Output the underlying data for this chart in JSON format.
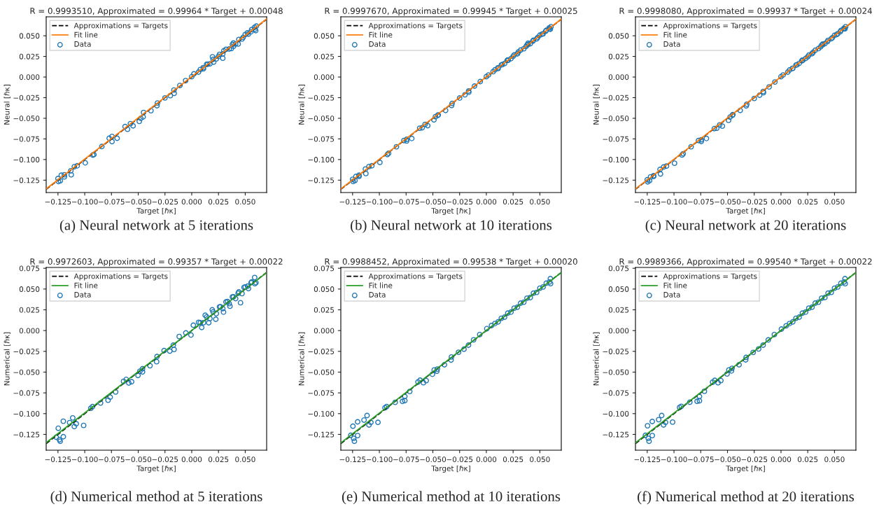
{
  "chart_data": [
    {
      "type": "scatter",
      "title": "R = 0.9993510, Approximated = 0.99964 * Target + 0.00048",
      "xlabel": "Target [ℏκ]",
      "ylabel": "Neural [ℏκ]",
      "annotations": [
        "(a) Neural network at 5 iterations"
      ],
      "legend": "top left",
      "grid": false,
      "xlim": [
        -0.136,
        0.07
      ],
      "ylim": [
        -0.14,
        0.073
      ],
      "xticks": [
        {
          "value": -0.125,
          "label": "−0.125"
        },
        {
          "value": -0.1,
          "label": "−0.100"
        },
        {
          "value": -0.075,
          "label": "−0.075"
        },
        {
          "value": -0.05,
          "label": "−0.050"
        },
        {
          "value": -0.025,
          "label": "−0.025"
        },
        {
          "value": 0,
          "label": "0.000"
        },
        {
          "value": 0.025,
          "label": "0.025"
        },
        {
          "value": 0.05,
          "label": "0.050"
        }
      ],
      "yticks": [
        {
          "value": -0.125,
          "label": "−0.125"
        },
        {
          "value": -0.1,
          "label": "−0.100"
        },
        {
          "value": -0.075,
          "label": "−0.075"
        },
        {
          "value": -0.05,
          "label": "−0.050"
        },
        {
          "value": -0.025,
          "label": "−0.025"
        },
        {
          "value": 0,
          "label": "0.000"
        },
        {
          "value": 0.025,
          "label": "0.025"
        },
        {
          "value": 0.05,
          "label": "0.050"
        }
      ],
      "series": [
        {
          "name": "Approximations = Targets",
          "type": "line",
          "line_style": "dashed",
          "color": "#000000",
          "x": [
            -0.136,
            0.07
          ],
          "values": [
            -0.136,
            0.07
          ]
        },
        {
          "name": "Fit line",
          "type": "line",
          "line_style": "solid",
          "color": "#ff7f0e",
          "x": [
            -0.136,
            0.07
          ],
          "values": [
            -0.13547,
            0.07045
          ]
        },
        {
          "name": "Data",
          "type": "scatter",
          "marker": "circle",
          "color": "#1f77b4",
          "x": [
            -0.125,
            -0.1245,
            -0.1228,
            -0.1219,
            -0.119,
            -0.119,
            -0.1126,
            -0.113,
            -0.1097,
            -0.107,
            -0.0995,
            -0.0925,
            -0.0914,
            -0.084,
            -0.0771,
            -0.0745,
            -0.0745,
            -0.0697,
            -0.0623,
            -0.06,
            -0.0573,
            -0.0548,
            -0.049,
            -0.0476,
            -0.0454,
            -0.045,
            -0.0381,
            -0.0325,
            -0.032,
            -0.025,
            -0.02,
            -0.0166,
            -0.0164,
            -0.0111,
            -0.0057,
            0,
            0.002,
            0.0063,
            0.0107,
            0.015,
            0.0194,
            0.0205,
            0.025,
            0.029,
            0.03,
            0.037,
            0.039,
            0.039,
            0.0434,
            0.048,
            0.052,
            0.0554,
            0.0587,
            0.0598,
            0.0604,
            0.008,
            0.011,
            0.014,
            0.017,
            0.02,
            0.023,
            0.026,
            0.029,
            0.032,
            0.035,
            0.038,
            0.041,
            0.044,
            0.047,
            0.05,
            0.053,
            0.056,
            0.059
          ],
          "values": [
            -0.123,
            -0.1266,
            -0.1258,
            -0.119,
            -0.1185,
            -0.121,
            -0.1185,
            -0.1136,
            -0.1087,
            -0.1076,
            -0.104,
            -0.0946,
            -0.094,
            -0.0842,
            -0.0742,
            -0.072,
            -0.0783,
            -0.0742,
            -0.06,
            -0.0633,
            -0.0565,
            -0.0592,
            -0.0538,
            -0.05,
            -0.0484,
            -0.0429,
            -0.0408,
            -0.0348,
            -0.0315,
            -0.0253,
            -0.0226,
            -0.0158,
            -0.0198,
            -0.0103,
            -0.0043,
            0.0005,
            0.0038,
            0.006,
            0.0114,
            0.0155,
            0.0245,
            0.018,
            0.025,
            0.0228,
            0.0318,
            0.0345,
            0.0372,
            0.0413,
            0.04,
            0.048,
            0.0535,
            0.0549,
            0.0603,
            0.0563,
            0.0617,
            0.009,
            0.01,
            0.0155,
            0.016,
            0.0215,
            0.022,
            0.0275,
            0.028,
            0.0335,
            0.034,
            0.0395,
            0.04,
            0.0455,
            0.046,
            0.0515,
            0.052,
            0.0575,
            0.058
          ]
        }
      ]
    },
    {
      "type": "scatter",
      "title": "R = 0.9997670, Approximated = 0.99945 * Target + 0.00025",
      "xlabel": "Target [ℏκ]",
      "ylabel": "Neural [ℏκ]",
      "annotations": [
        "(b) Neural network at 10 iterations"
      ],
      "legend": "top left",
      "grid": false,
      "xlim": [
        -0.136,
        0.07
      ],
      "ylim": [
        -0.14,
        0.073
      ],
      "xticks": [
        {
          "value": -0.125,
          "label": "−0.125"
        },
        {
          "value": -0.1,
          "label": "−0.100"
        },
        {
          "value": -0.075,
          "label": "−0.075"
        },
        {
          "value": -0.05,
          "label": "−0.050"
        },
        {
          "value": -0.025,
          "label": "−0.025"
        },
        {
          "value": 0,
          "label": "0.000"
        },
        {
          "value": 0.025,
          "label": "0.025"
        },
        {
          "value": 0.05,
          "label": "0.050"
        }
      ],
      "yticks": [
        {
          "value": -0.125,
          "label": "−0.125"
        },
        {
          "value": -0.1,
          "label": "−0.100"
        },
        {
          "value": -0.075,
          "label": "−0.075"
        },
        {
          "value": -0.05,
          "label": "−0.050"
        },
        {
          "value": -0.025,
          "label": "−0.025"
        },
        {
          "value": 0,
          "label": "0.000"
        },
        {
          "value": 0.025,
          "label": "0.025"
        },
        {
          "value": 0.05,
          "label": "0.050"
        }
      ],
      "series": [
        {
          "name": "Approximations = Targets",
          "type": "line",
          "line_style": "dashed",
          "color": "#000000",
          "x": [
            -0.136,
            0.07
          ],
          "values": [
            -0.136,
            0.07
          ]
        },
        {
          "name": "Fit line",
          "type": "line",
          "line_style": "solid",
          "color": "#ff7f0e",
          "x": [
            -0.136,
            0.07
          ],
          "values": [
            -0.13568,
            0.07021
          ]
        },
        {
          "name": "Data",
          "type": "scatter",
          "marker": "circle",
          "color": "#1f77b4",
          "x": [
            -0.125,
            -0.1245,
            -0.1228,
            -0.1219,
            -0.119,
            -0.119,
            -0.1126,
            -0.113,
            -0.1097,
            -0.107,
            -0.0995,
            -0.0925,
            -0.0914,
            -0.084,
            -0.0771,
            -0.0745,
            -0.0745,
            -0.0697,
            -0.0623,
            -0.06,
            -0.0573,
            -0.0548,
            -0.049,
            -0.0476,
            -0.0454,
            -0.045,
            -0.0381,
            -0.0325,
            -0.032,
            -0.025,
            -0.02,
            -0.0166,
            -0.0164,
            -0.0111,
            -0.0057,
            0,
            0.002,
            0.0063,
            0.0107,
            0.015,
            0.0194,
            0.0205,
            0.025,
            0.029,
            0.03,
            0.037,
            0.039,
            0.039,
            0.0434,
            0.048,
            0.052,
            0.0554,
            0.0587,
            0.0598,
            0.0604,
            0.008,
            0.011,
            0.014,
            0.017,
            0.02,
            0.023,
            0.026,
            0.029,
            0.032,
            0.035,
            0.038,
            0.041,
            0.044,
            0.047,
            0.05,
            0.053,
            0.056,
            0.059
          ],
          "values": [
            -0.124,
            -0.1265,
            -0.1255,
            -0.1205,
            -0.119,
            -0.1205,
            -0.117,
            -0.1115,
            -0.1085,
            -0.1075,
            -0.1035,
            -0.094,
            -0.0925,
            -0.0845,
            -0.077,
            -0.0755,
            -0.0775,
            -0.0745,
            -0.062,
            -0.0615,
            -0.0575,
            -0.059,
            -0.052,
            -0.048,
            -0.0465,
            -0.046,
            -0.0405,
            -0.0345,
            -0.032,
            -0.0255,
            -0.0215,
            -0.017,
            -0.0185,
            -0.011,
            -0.0055,
            0.0005,
            0.0025,
            0.0065,
            0.011,
            0.0152,
            0.02,
            0.0205,
            0.025,
            0.0285,
            0.0305,
            0.037,
            0.0395,
            0.041,
            0.0435,
            0.048,
            0.052,
            0.0555,
            0.0595,
            0.058,
            0.061,
            0.0087,
            0.0103,
            0.0147,
            0.0163,
            0.0207,
            0.0223,
            0.0267,
            0.0283,
            0.0327,
            0.0343,
            0.0387,
            0.0403,
            0.0447,
            0.0463,
            0.0507,
            0.0523,
            0.0567,
            0.0583
          ]
        }
      ]
    },
    {
      "type": "scatter",
      "title": "R = 0.9998080, Approximated = 0.99937 * Target + 0.00024",
      "xlabel": "Target [ℏκ]",
      "ylabel": "Neural [ℏκ]",
      "annotations": [
        "(c) Neural network at 20 iterations"
      ],
      "legend": "top left",
      "grid": false,
      "xlim": [
        -0.136,
        0.07
      ],
      "ylim": [
        -0.14,
        0.073
      ],
      "xticks": [
        {
          "value": -0.125,
          "label": "−0.125"
        },
        {
          "value": -0.1,
          "label": "−0.100"
        },
        {
          "value": -0.075,
          "label": "−0.075"
        },
        {
          "value": -0.05,
          "label": "−0.050"
        },
        {
          "value": -0.025,
          "label": "−0.025"
        },
        {
          "value": 0,
          "label": "0.000"
        },
        {
          "value": 0.025,
          "label": "0.025"
        },
        {
          "value": 0.05,
          "label": "0.050"
        }
      ],
      "yticks": [
        {
          "value": -0.125,
          "label": "−0.125"
        },
        {
          "value": -0.1,
          "label": "−0.100"
        },
        {
          "value": -0.075,
          "label": "−0.075"
        },
        {
          "value": -0.05,
          "label": "−0.050"
        },
        {
          "value": -0.025,
          "label": "−0.025"
        },
        {
          "value": 0,
          "label": "0.000"
        },
        {
          "value": 0.025,
          "label": "0.025"
        },
        {
          "value": 0.05,
          "label": "0.050"
        }
      ],
      "series": [
        {
          "name": "Approximations = Targets",
          "type": "line",
          "line_style": "dashed",
          "color": "#000000",
          "x": [
            -0.136,
            0.07
          ],
          "values": [
            -0.136,
            0.07
          ]
        },
        {
          "name": "Fit line",
          "type": "line",
          "line_style": "solid",
          "color": "#ff7f0e",
          "x": [
            -0.136,
            0.07
          ],
          "values": [
            -0.13567,
            0.0702
          ]
        },
        {
          "name": "Data",
          "type": "scatter",
          "marker": "circle",
          "color": "#1f77b4",
          "x": [
            -0.125,
            -0.1245,
            -0.1228,
            -0.1219,
            -0.119,
            -0.119,
            -0.1126,
            -0.113,
            -0.1097,
            -0.107,
            -0.0995,
            -0.0925,
            -0.0914,
            -0.084,
            -0.0771,
            -0.0745,
            -0.0745,
            -0.0697,
            -0.0623,
            -0.06,
            -0.0573,
            -0.0548,
            -0.049,
            -0.0476,
            -0.0454,
            -0.045,
            -0.0381,
            -0.0325,
            -0.032,
            -0.025,
            -0.02,
            -0.0166,
            -0.0164,
            -0.0111,
            -0.0057,
            0,
            0.002,
            0.0063,
            0.0107,
            0.015,
            0.0194,
            0.0205,
            0.025,
            0.029,
            0.03,
            0.037,
            0.039,
            0.039,
            0.0434,
            0.048,
            0.052,
            0.0554,
            0.0587,
            0.0598,
            0.0604,
            0.008,
            0.011,
            0.014,
            0.017,
            0.02,
            0.023,
            0.026,
            0.029,
            0.032,
            0.035,
            0.038,
            0.041,
            0.044,
            0.047,
            0.05,
            0.053,
            0.056,
            0.059
          ],
          "values": [
            -0.1245,
            -0.127,
            -0.1255,
            -0.121,
            -0.1195,
            -0.1205,
            -0.1175,
            -0.112,
            -0.109,
            -0.108,
            -0.1045,
            -0.0945,
            -0.093,
            -0.0845,
            -0.077,
            -0.076,
            -0.078,
            -0.0745,
            -0.0625,
            -0.062,
            -0.058,
            -0.0595,
            -0.0525,
            -0.0485,
            -0.0465,
            -0.0455,
            -0.0405,
            -0.035,
            -0.033,
            -0.026,
            -0.022,
            -0.0175,
            -0.019,
            -0.012,
            -0.006,
            0.0005,
            0.0025,
            0.006,
            0.0105,
            0.015,
            0.0195,
            0.0205,
            0.0245,
            0.0285,
            0.03,
            0.0365,
            0.039,
            0.04,
            0.043,
            0.0475,
            0.0515,
            0.055,
            0.059,
            0.0585,
            0.061,
            0.0085,
            0.0105,
            0.0145,
            0.0165,
            0.0205,
            0.0225,
            0.0265,
            0.0285,
            0.0325,
            0.0345,
            0.0385,
            0.0405,
            0.0445,
            0.0465,
            0.0505,
            0.0525,
            0.0565,
            0.0585
          ]
        }
      ]
    },
    {
      "type": "scatter",
      "title": "R = 0.9972603, Approximated = 0.99357 * Target + 0.00022",
      "xlabel": "Target [ℏκ]",
      "ylabel": "Numerical [ℏκ]",
      "annotations": [
        "(d) Numerical method at 5 iterations"
      ],
      "legend": "top left",
      "grid": false,
      "xlim": [
        -0.136,
        0.07
      ],
      "ylim": [
        -0.144,
        0.076
      ],
      "xticks": [
        {
          "value": -0.125,
          "label": "−0.125"
        },
        {
          "value": -0.1,
          "label": "−0.100"
        },
        {
          "value": -0.075,
          "label": "−0.075"
        },
        {
          "value": -0.05,
          "label": "−0.050"
        },
        {
          "value": -0.025,
          "label": "−0.025"
        },
        {
          "value": 0,
          "label": "0.000"
        },
        {
          "value": 0.025,
          "label": "0.025"
        },
        {
          "value": 0.05,
          "label": "0.050"
        }
      ],
      "yticks": [
        {
          "value": -0.125,
          "label": "−0.125"
        },
        {
          "value": -0.1,
          "label": "−0.100"
        },
        {
          "value": -0.075,
          "label": "−0.075"
        },
        {
          "value": -0.05,
          "label": "−0.050"
        },
        {
          "value": -0.025,
          "label": "−0.025"
        },
        {
          "value": 0,
          "label": "0.000"
        },
        {
          "value": 0.025,
          "label": "0.025"
        },
        {
          "value": 0.05,
          "label": "0.050"
        },
        {
          "value": 0.075,
          "label": "0.075"
        }
      ],
      "series": [
        {
          "name": "Approximations = Targets",
          "type": "line",
          "line_style": "dashed",
          "color": "#000000",
          "x": [
            -0.136,
            0.07
          ],
          "values": [
            -0.136,
            0.07
          ]
        },
        {
          "name": "Fit line",
          "type": "line",
          "line_style": "solid",
          "color": "#2ca02c",
          "x": [
            -0.136,
            0.07
          ],
          "values": [
            -0.13491,
            0.06977
          ]
        },
        {
          "name": "Data",
          "type": "scatter",
          "marker": "circle",
          "color": "#1f77b4",
          "x": [
            -0.1266,
            -0.1247,
            -0.1236,
            -0.1229,
            -0.12,
            -0.12,
            -0.1141,
            -0.1112,
            -0.1097,
            -0.1079,
            -0.101,
            -0.0943,
            -0.0927,
            -0.0852,
            -0.0782,
            -0.0762,
            -0.0711,
            -0.0637,
            -0.0612,
            -0.0588,
            -0.0562,
            -0.0502,
            -0.0485,
            -0.046,
            -0.046,
            -0.039,
            -0.0328,
            -0.0324,
            -0.0258,
            -0.0205,
            -0.0172,
            -0.0165,
            -0.0117,
            -0.0055,
            -0.0007,
            0.0015,
            0.0064,
            0.0093,
            0.0126,
            0.0159,
            0.0192,
            0.0225,
            0.0269,
            0.0297,
            0.0335,
            0.0357,
            0.039,
            0.0434,
            0.0456,
            0.0489,
            0.0522,
            0.0555,
            0.0588,
            0.06,
            0.008,
            0.011,
            0.014,
            0.017,
            0.02,
            0.023,
            0.026,
            0.029,
            0.032,
            0.035,
            0.038,
            0.041,
            0.044,
            0.047,
            0.05,
            0.053,
            0.056,
            0.059
          ],
          "values": [
            -0.1284,
            -0.1176,
            -0.1313,
            -0.1332,
            -0.1278,
            -0.1091,
            -0.1108,
            -0.1051,
            -0.1156,
            -0.1122,
            -0.1142,
            -0.0935,
            -0.0915,
            -0.0872,
            -0.0838,
            -0.0801,
            -0.0739,
            -0.0611,
            -0.0588,
            -0.0631,
            -0.0616,
            -0.054,
            -0.0489,
            -0.0497,
            -0.046,
            -0.0423,
            -0.0375,
            -0.0313,
            -0.0241,
            -0.0247,
            -0.0176,
            -0.0227,
            -0.0071,
            -0.0028,
            -0.0054,
            0.0065,
            0.0099,
            0.0037,
            0.0185,
            0.0094,
            0.025,
            0.0136,
            0.0287,
            0.0222,
            0.0349,
            0.0293,
            0.0406,
            0.0449,
            0.0335,
            0.052,
            0.0534,
            0.0577,
            0.0639,
            0.0577,
            0.0095,
            0.0095,
            0.0165,
            0.0145,
            0.0225,
            0.0205,
            0.0285,
            0.0265,
            0.0345,
            0.0325,
            0.0405,
            0.0385,
            0.0465,
            0.0445,
            0.0525,
            0.0505,
            0.0585,
            0.0565
          ]
        }
      ]
    },
    {
      "type": "scatter",
      "title": "R = 0.9988452, Approximated = 0.99538 * Target + 0.00020",
      "xlabel": "Target [ℏκ]",
      "ylabel": "Numerical [ℏκ]",
      "annotations": [
        "(e) Numerical method at 10 iterations"
      ],
      "legend": "top left",
      "grid": false,
      "xlim": [
        -0.136,
        0.07
      ],
      "ylim": [
        -0.144,
        0.076
      ],
      "xticks": [
        {
          "value": -0.125,
          "label": "−0.125"
        },
        {
          "value": -0.1,
          "label": "−0.100"
        },
        {
          "value": -0.075,
          "label": "−0.075"
        },
        {
          "value": -0.05,
          "label": "−0.050"
        },
        {
          "value": -0.025,
          "label": "−0.025"
        },
        {
          "value": 0,
          "label": "0.000"
        },
        {
          "value": 0.025,
          "label": "0.025"
        },
        {
          "value": 0.05,
          "label": "0.050"
        }
      ],
      "yticks": [
        {
          "value": -0.125,
          "label": "−0.125"
        },
        {
          "value": -0.1,
          "label": "−0.100"
        },
        {
          "value": -0.075,
          "label": "−0.075"
        },
        {
          "value": -0.05,
          "label": "−0.050"
        },
        {
          "value": -0.025,
          "label": "−0.025"
        },
        {
          "value": 0,
          "label": "0.000"
        },
        {
          "value": 0.025,
          "label": "0.025"
        },
        {
          "value": 0.05,
          "label": "0.050"
        },
        {
          "value": 0.075,
          "label": "0.075"
        }
      ],
      "series": [
        {
          "name": "Approximations = Targets",
          "type": "line",
          "line_style": "dashed",
          "color": "#000000",
          "x": [
            -0.136,
            0.07
          ],
          "values": [
            -0.136,
            0.07
          ]
        },
        {
          "name": "Fit line",
          "type": "line",
          "line_style": "solid",
          "color": "#2ca02c",
          "x": [
            -0.136,
            0.07
          ],
          "values": [
            -0.13517,
            0.06988
          ]
        },
        {
          "name": "Data",
          "type": "scatter",
          "marker": "circle",
          "color": "#1f77b4",
          "x": [
            -0.1267,
            -0.1247,
            -0.124,
            -0.1233,
            -0.1203,
            -0.1203,
            -0.1143,
            -0.1115,
            -0.1097,
            -0.1079,
            -0.1013,
            -0.0947,
            -0.0932,
            -0.0852,
            -0.0784,
            -0.0762,
            -0.0762,
            -0.0716,
            -0.0639,
            -0.0619,
            -0.0588,
            -0.0562,
            -0.0504,
            -0.0487,
            -0.0463,
            -0.0458,
            -0.0392,
            -0.033,
            -0.0326,
            -0.026,
            -0.0209,
            -0.0167,
            -0.0119,
            -0.0062,
            0.0004,
            0.0048,
            0.008,
            0.011,
            0.014,
            0.017,
            0.02,
            0.023,
            0.026,
            0.029,
            0.032,
            0.035,
            0.038,
            0.041,
            0.044,
            0.047,
            0.05,
            0.053,
            0.056,
            0.059,
            0.0598,
            0.06
          ],
          "values": [
            -0.1261,
            -0.1151,
            -0.1298,
            -0.1332,
            -0.1264,
            -0.1099,
            -0.1077,
            -0.1023,
            -0.1136,
            -0.1105,
            -0.1105,
            -0.0929,
            -0.0915,
            -0.0864,
            -0.0852,
            -0.0844,
            -0.0793,
            -0.0733,
            -0.0619,
            -0.0597,
            -0.0628,
            -0.0602,
            -0.0526,
            -0.0474,
            -0.0489,
            -0.0463,
            -0.0412,
            -0.0355,
            -0.0318,
            -0.0261,
            -0.0224,
            -0.0176,
            -0.0111,
            -0.0048,
            0.0023,
            0.006,
            0.0085,
            0.0105,
            0.0148,
            0.0162,
            0.021,
            0.0222,
            0.027,
            0.0282,
            0.033,
            0.0342,
            0.039,
            0.0398,
            0.045,
            0.046,
            0.051,
            0.0525,
            0.057,
            0.0585,
            0.0625,
            0.0565
          ]
        }
      ]
    },
    {
      "type": "scatter",
      "title": "R = 0.9989366, Approximated = 0.99540 * Target + 0.00022",
      "xlabel": "Target [ℏκ]",
      "ylabel": "Numerical [ℏκ]",
      "annotations": [
        "(f) Numerical method at 20 iterations"
      ],
      "legend": "top left",
      "grid": false,
      "xlim": [
        -0.136,
        0.07
      ],
      "ylim": [
        -0.144,
        0.076
      ],
      "xticks": [
        {
          "value": -0.125,
          "label": "−0.125"
        },
        {
          "value": -0.1,
          "label": "−0.100"
        },
        {
          "value": -0.075,
          "label": "−0.075"
        },
        {
          "value": -0.05,
          "label": "−0.050"
        },
        {
          "value": -0.025,
          "label": "−0.025"
        },
        {
          "value": 0,
          "label": "0.000"
        },
        {
          "value": 0.025,
          "label": "0.025"
        },
        {
          "value": 0.05,
          "label": "0.050"
        }
      ],
      "yticks": [
        {
          "value": -0.125,
          "label": "−0.125"
        },
        {
          "value": -0.1,
          "label": "−0.100"
        },
        {
          "value": -0.075,
          "label": "−0.075"
        },
        {
          "value": -0.05,
          "label": "−0.050"
        },
        {
          "value": -0.025,
          "label": "−0.025"
        },
        {
          "value": 0,
          "label": "0.000"
        },
        {
          "value": 0.025,
          "label": "0.025"
        },
        {
          "value": 0.05,
          "label": "0.050"
        },
        {
          "value": 0.075,
          "label": "0.075"
        }
      ],
      "series": [
        {
          "name": "Approximations = Targets",
          "type": "line",
          "line_style": "dashed",
          "color": "#000000",
          "x": [
            -0.136,
            0.07
          ],
          "values": [
            -0.136,
            0.07
          ]
        },
        {
          "name": "Fit line",
          "type": "line",
          "line_style": "solid",
          "color": "#2ca02c",
          "x": [
            -0.136,
            0.07
          ],
          "values": [
            -0.13515,
            0.0699
          ]
        },
        {
          "name": "Data",
          "type": "scatter",
          "marker": "circle",
          "color": "#1f77b4",
          "x": [
            -0.1267,
            -0.1247,
            -0.124,
            -0.1233,
            -0.1203,
            -0.1203,
            -0.1143,
            -0.1115,
            -0.1097,
            -0.1079,
            -0.1013,
            -0.0947,
            -0.0932,
            -0.0852,
            -0.0784,
            -0.0762,
            -0.0762,
            -0.0716,
            -0.0639,
            -0.0619,
            -0.0588,
            -0.0562,
            -0.0504,
            -0.0487,
            -0.0463,
            -0.0458,
            -0.0392,
            -0.033,
            -0.0326,
            -0.026,
            -0.0209,
            -0.0167,
            -0.0119,
            -0.0062,
            0.0004,
            0.0048,
            0.008,
            0.011,
            0.014,
            0.017,
            0.02,
            0.023,
            0.026,
            0.029,
            0.032,
            0.035,
            0.038,
            0.041,
            0.044,
            0.047,
            0.05,
            0.053,
            0.056,
            0.059,
            0.0598,
            0.06
          ],
          "values": [
            -0.1261,
            -0.1146,
            -0.1298,
            -0.1332,
            -0.1264,
            -0.1094,
            -0.1072,
            -0.1023,
            -0.1136,
            -0.1105,
            -0.1102,
            -0.0925,
            -0.0912,
            -0.0862,
            -0.0852,
            -0.0846,
            -0.0793,
            -0.0731,
            -0.0621,
            -0.0599,
            -0.0628,
            -0.0602,
            -0.0522,
            -0.0474,
            -0.0486,
            -0.0455,
            -0.0412,
            -0.0352,
            -0.0323,
            -0.0263,
            -0.0221,
            -0.0176,
            -0.0113,
            -0.0048,
            0.0018,
            0.0057,
            0.0085,
            0.0105,
            0.0148,
            0.0162,
            0.021,
            0.0222,
            0.027,
            0.0282,
            0.033,
            0.0342,
            0.039,
            0.0398,
            0.045,
            0.046,
            0.051,
            0.0525,
            0.057,
            0.0585,
            0.0625,
            0.0565
          ]
        }
      ]
    }
  ]
}
